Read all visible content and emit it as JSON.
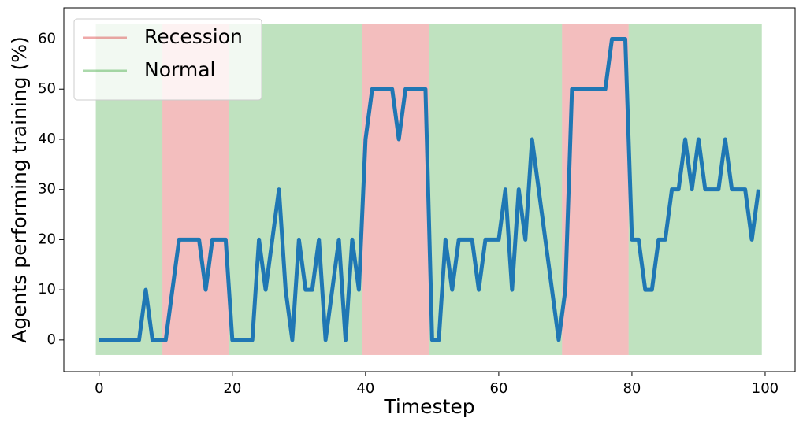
{
  "chart_data": {
    "type": "line",
    "x_label": "Timestep",
    "y_label": "Agents performing training (%)",
    "xlim": [
      -5.3,
      104.5
    ],
    "ylim": [
      -6.3,
      66.2
    ],
    "xticks": [
      0,
      20,
      40,
      60,
      80,
      100
    ],
    "yticks": [
      0,
      10,
      20,
      30,
      40,
      50,
      60
    ],
    "legend_position": "upper left",
    "band_ylim": [
      -3,
      63
    ],
    "shading": [
      {
        "name": "Recession",
        "color": "#d62728",
        "spans": [
          [
            9.5,
            19.5
          ],
          [
            39.5,
            49.5
          ],
          [
            69.5,
            79.5
          ]
        ]
      },
      {
        "name": "Normal",
        "color": "#2ca02c",
        "spans": [
          [
            -0.5,
            9.5
          ],
          [
            19.5,
            39.5
          ],
          [
            49.5,
            69.5
          ],
          [
            79.5,
            99.5
          ]
        ]
      }
    ],
    "series": [
      {
        "color": "#1f77b4",
        "x": [
          0,
          1,
          2,
          3,
          4,
          5,
          6,
          7,
          8,
          9,
          10,
          11,
          12,
          13,
          14,
          15,
          16,
          17,
          18,
          19,
          20,
          21,
          22,
          23,
          24,
          25,
          26,
          27,
          28,
          29,
          30,
          31,
          32,
          33,
          34,
          35,
          36,
          37,
          38,
          39,
          40,
          41,
          42,
          43,
          44,
          45,
          46,
          47,
          48,
          49,
          50,
          51,
          52,
          53,
          54,
          55,
          56,
          57,
          58,
          59,
          60,
          61,
          62,
          63,
          64,
          65,
          66,
          67,
          68,
          69,
          70,
          71,
          72,
          73,
          74,
          75,
          76,
          77,
          78,
          79,
          80,
          81,
          82,
          83,
          84,
          85,
          86,
          87,
          88,
          89,
          90,
          91,
          92,
          93,
          94,
          95,
          96,
          97,
          98,
          99
        ],
        "values": [
          0,
          0,
          0,
          0,
          0,
          0,
          0,
          10,
          0,
          0,
          0,
          10,
          20,
          20,
          20,
          20,
          10,
          20,
          20,
          20,
          0,
          0,
          0,
          0,
          20,
          10,
          20,
          30,
          10,
          0,
          20,
          10,
          10,
          20,
          0,
          10,
          20,
          0,
          20,
          10,
          40,
          50,
          50,
          50,
          50,
          40,
          50,
          50,
          50,
          50,
          0,
          0,
          20,
          10,
          20,
          20,
          20,
          10,
          20,
          20,
          20,
          30,
          10,
          30,
          20,
          40,
          30,
          20,
          10,
          0,
          10,
          50,
          50,
          50,
          50,
          50,
          50,
          60,
          60,
          60,
          20,
          20,
          10,
          10,
          20,
          20,
          30,
          30,
          40,
          30,
          40,
          30,
          30,
          30,
          40,
          30,
          30,
          30,
          20,
          30
        ]
      }
    ]
  }
}
